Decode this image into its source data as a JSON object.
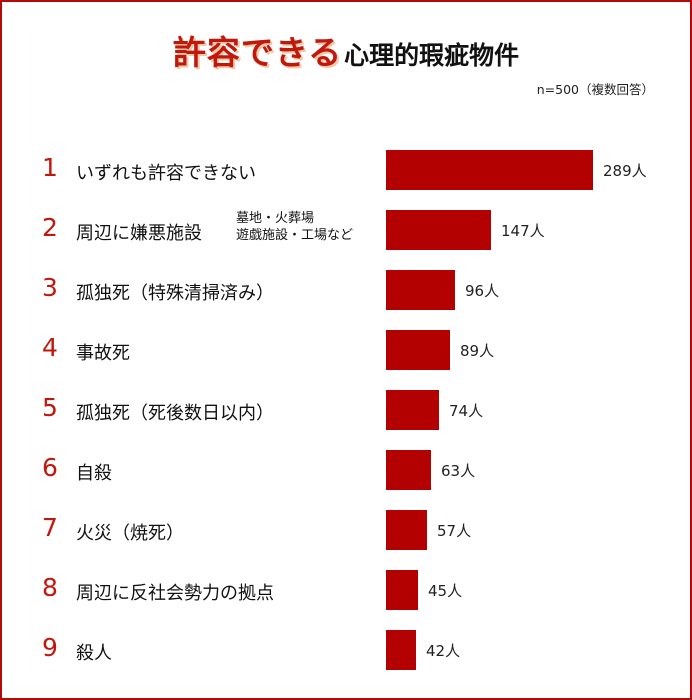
{
  "title": {
    "highlight": "許容できる",
    "rest": "心理的瑕疵物件"
  },
  "note": "n=500（複数回答）",
  "colors": {
    "bar": "#b30000",
    "accent": "#c0180c",
    "border": "#b40a0a"
  },
  "chart_data": {
    "type": "bar",
    "orientation": "horizontal",
    "unit": "人",
    "xlim": [
      0,
      289
    ],
    "categories": [
      {
        "rank": "1",
        "label": "いずれも許容できない",
        "sub": []
      },
      {
        "rank": "2",
        "label": "周辺に嫌悪施設",
        "sub": [
          "墓地・火葬場",
          "遊戯施設・工場など"
        ]
      },
      {
        "rank": "3",
        "label": "孤独死（特殊清掃済み）",
        "sub": []
      },
      {
        "rank": "4",
        "label": "事故死",
        "sub": []
      },
      {
        "rank": "5",
        "label": "孤独死（死後数日以内）",
        "sub": []
      },
      {
        "rank": "6",
        "label": "自殺",
        "sub": []
      },
      {
        "rank": "7",
        "label": "火災（焼死）",
        "sub": []
      },
      {
        "rank": "8",
        "label": "周辺に反社会勢力の拠点",
        "sub": []
      },
      {
        "rank": "9",
        "label": "殺人",
        "sub": []
      }
    ],
    "values": [
      289,
      147,
      96,
      89,
      74,
      63,
      57,
      45,
      42
    ]
  }
}
